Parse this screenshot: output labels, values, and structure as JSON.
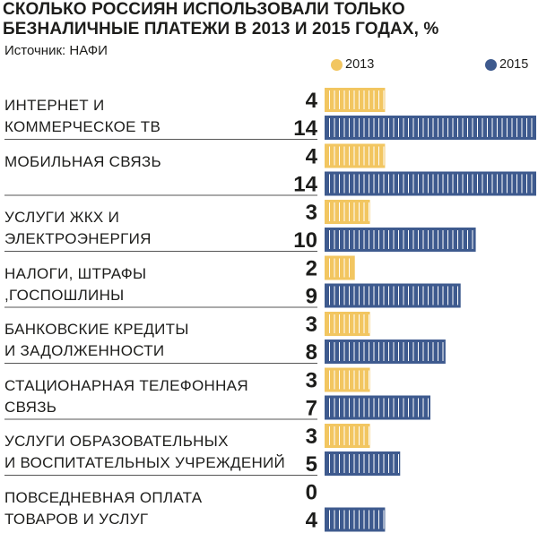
{
  "title": {
    "line1": "СКОЛЬКО РОССИЯН ИСПОЛЬЗОВАЛИ ТОЛЬКО",
    "line2": "БЕЗНАЛИЧНЫЕ ПЛАТЕЖИ В 2013 И 2015 ГОДАХ, %"
  },
  "source": "Источник: НАФИ",
  "legend": [
    {
      "label": "2013",
      "color": "#f2c661"
    },
    {
      "label": "2015",
      "color": "#3e5a8e"
    }
  ],
  "chart_data": {
    "type": "bar",
    "orientation": "horizontal",
    "unit": "%",
    "categories": [
      [
        "ИНТЕРНЕТ И",
        "КОММЕРЧЕСКОЕ ТВ"
      ],
      [
        "МОБИЛЬНАЯ СВЯЗЬ"
      ],
      [
        "УСЛУГИ ЖКХ И",
        "ЭЛЕКТРОЭНЕРГИЯ"
      ],
      [
        "НАЛОГИ, ШТРАФЫ",
        ",ГОСПОШЛИНЫ"
      ],
      [
        "БАНКОВСКИЕ КРЕДИТЫ",
        "И ЗАДОЛЖЕННОСТИ"
      ],
      [
        "СТАЦИОНАРНАЯ ТЕЛЕФОННАЯ",
        "СВЯЗЬ"
      ],
      [
        "УСЛУГИ ОБРАЗОВАТЕЛЬНЫХ",
        "И ВОСПИТАТЕЛЬНЫХ УЧРЕЖДЕНИЙ"
      ],
      [
        "ПОВСЕДНЕВНАЯ ОПЛАТА",
        "ТОВАРОВ И УСЛУГ"
      ]
    ],
    "series": [
      {
        "name": "2013",
        "color": "#f2c661",
        "values": [
          4,
          4,
          3,
          2,
          3,
          3,
          3,
          0
        ]
      },
      {
        "name": "2015",
        "color": "#3e5a8e",
        "values": [
          14,
          14,
          10,
          9,
          8,
          7,
          5,
          4
        ]
      }
    ],
    "xlim": [
      0,
      14
    ],
    "grid": false,
    "legend_position": "top-right"
  }
}
